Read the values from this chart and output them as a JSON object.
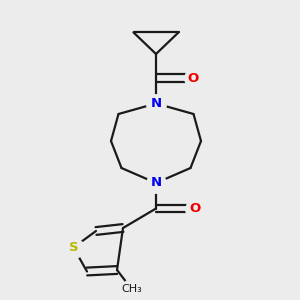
{
  "background_color": "#ececec",
  "bond_color": "#1a1a1a",
  "nitrogen_color": "#0000ee",
  "oxygen_color": "#ee0000",
  "sulfur_color": "#b8b800",
  "lw": 1.6,
  "figsize": [
    3.0,
    3.0
  ],
  "dpi": 100,
  "atom_labels": {
    "N1": {
      "text": "N",
      "color": "#0000ee",
      "fontsize": 9.5,
      "fontweight": "bold"
    },
    "N2": {
      "text": "N",
      "color": "#0000ee",
      "fontsize": 9.5,
      "fontweight": "bold"
    },
    "O1": {
      "text": "O",
      "color": "#ee0000",
      "fontsize": 9.5,
      "fontweight": "bold"
    },
    "O2": {
      "text": "O",
      "color": "#ee0000",
      "fontsize": 9.5,
      "fontweight": "bold"
    },
    "S": {
      "text": "S",
      "color": "#b8b800",
      "fontsize": 9.5,
      "fontweight": "bold"
    }
  },
  "methyl_label": {
    "text": "CH₃",
    "fontsize": 8,
    "color": "#1a1a1a"
  }
}
